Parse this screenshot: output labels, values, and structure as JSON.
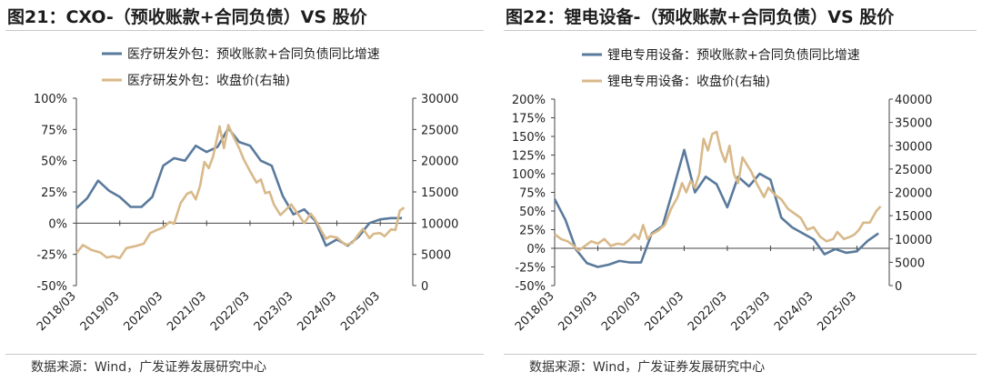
{
  "charts": [
    {
      "title": "图21：CXO-（预收账款+合同负债）VS  股价",
      "source": "数据来源：Wind，广发证券发展研究中心",
      "colors": {
        "growth": "#5a7a9c",
        "price": "#d8b98a"
      }
    },
    {
      "title": "图22：锂电设备-（预收账款+合同负债）VS  股价",
      "source": "数据来源：Wind，广发证券发展研究中心",
      "colors": {
        "growth": "#5a7a9c",
        "price": "#d8b98a"
      }
    }
  ],
  "chart_data": [
    {
      "type": "line",
      "x_tick_labels": [
        "2018/03",
        "2019/03",
        "2020/03",
        "2021/03",
        "2022/03",
        "2023/03",
        "2024/03",
        "2025/03"
      ],
      "y_left_ticks": [
        "100%",
        "75%",
        "50%",
        "25%",
        "0%",
        "-25%",
        "-50%"
      ],
      "y_right_ticks": [
        "30000",
        "25000",
        "20000",
        "15000",
        "10000",
        "5000",
        "0"
      ],
      "ylim_left": [
        -50,
        100
      ],
      "ylim_right": [
        0,
        30000
      ],
      "xlim": [
        2018.0,
        2025.75
      ],
      "series": [
        {
          "name": "医疗研发外包：预收账款+合同负债同比增速",
          "axis": "left",
          "points": [
            [
              2018.0,
              12
            ],
            [
              2018.25,
              20
            ],
            [
              2018.5,
              34
            ],
            [
              2018.75,
              26
            ],
            [
              2019.0,
              21
            ],
            [
              2019.25,
              13
            ],
            [
              2019.5,
              13
            ],
            [
              2019.75,
              21
            ],
            [
              2020.0,
              46
            ],
            [
              2020.25,
              52
            ],
            [
              2020.5,
              50
            ],
            [
              2020.75,
              62
            ],
            [
              2021.0,
              57
            ],
            [
              2021.25,
              61
            ],
            [
              2021.5,
              76
            ],
            [
              2021.75,
              65
            ],
            [
              2022.0,
              62
            ],
            [
              2022.25,
              50
            ],
            [
              2022.5,
              46
            ],
            [
              2022.75,
              22
            ],
            [
              2023.0,
              7
            ],
            [
              2023.25,
              11
            ],
            [
              2023.5,
              2
            ],
            [
              2023.75,
              -18
            ],
            [
              2024.0,
              -13
            ],
            [
              2024.25,
              -18
            ],
            [
              2024.5,
              -11
            ],
            [
              2024.75,
              0
            ],
            [
              2025.0,
              3
            ],
            [
              2025.25,
              4
            ],
            [
              2025.5,
              4
            ]
          ]
        },
        {
          "name": "医疗研发外包：收盘价(右轴)",
          "axis": "right",
          "points": [
            [
              2018.0,
              5200
            ],
            [
              2018.15,
              6500
            ],
            [
              2018.35,
              5700
            ],
            [
              2018.55,
              5300
            ],
            [
              2018.7,
              4500
            ],
            [
              2018.85,
              4700
            ],
            [
              2019.0,
              4400
            ],
            [
              2019.15,
              6000
            ],
            [
              2019.35,
              6300
            ],
            [
              2019.55,
              6700
            ],
            [
              2019.7,
              8400
            ],
            [
              2019.85,
              8900
            ],
            [
              2020.0,
              9300
            ],
            [
              2020.15,
              10200
            ],
            [
              2020.25,
              9900
            ],
            [
              2020.4,
              13200
            ],
            [
              2020.55,
              14700
            ],
            [
              2020.65,
              15000
            ],
            [
              2020.75,
              13800
            ],
            [
              2020.85,
              16000
            ],
            [
              2020.95,
              19800
            ],
            [
              2021.05,
              18800
            ],
            [
              2021.15,
              20700
            ],
            [
              2021.3,
              25500
            ],
            [
              2021.4,
              22000
            ],
            [
              2021.5,
              25700
            ],
            [
              2021.6,
              24100
            ],
            [
              2021.75,
              22000
            ],
            [
              2021.85,
              20300
            ],
            [
              2022.0,
              18300
            ],
            [
              2022.15,
              16500
            ],
            [
              2022.25,
              17000
            ],
            [
              2022.35,
              14800
            ],
            [
              2022.45,
              15000
            ],
            [
              2022.55,
              13000
            ],
            [
              2022.7,
              11300
            ],
            [
              2022.85,
              12300
            ],
            [
              2022.95,
              13000
            ],
            [
              2023.1,
              11500
            ],
            [
              2023.25,
              10000
            ],
            [
              2023.4,
              11500
            ],
            [
              2023.5,
              10600
            ],
            [
              2023.65,
              8700
            ],
            [
              2023.75,
              7500
            ],
            [
              2023.85,
              7900
            ],
            [
              2024.0,
              7700
            ],
            [
              2024.1,
              7100
            ],
            [
              2024.2,
              6500
            ],
            [
              2024.35,
              6800
            ],
            [
              2024.5,
              8200
            ],
            [
              2024.6,
              9100
            ],
            [
              2024.75,
              7600
            ],
            [
              2024.85,
              8300
            ],
            [
              2025.0,
              8400
            ],
            [
              2025.1,
              7900
            ],
            [
              2025.25,
              9000
            ],
            [
              2025.35,
              8900
            ],
            [
              2025.45,
              12000
            ],
            [
              2025.55,
              12500
            ]
          ]
        }
      ]
    },
    {
      "type": "line",
      "x_tick_labels": [
        "2018/03",
        "2019/03",
        "2020/03",
        "2021/03",
        "2022/03",
        "2023/03",
        "2024/03",
        "2025/03"
      ],
      "y_left_ticks": [
        "200%",
        "175%",
        "150%",
        "125%",
        "100%",
        "75%",
        "50%",
        "25%",
        "0%",
        "-25%",
        "-50%"
      ],
      "y_right_ticks": [
        "40000",
        "35000",
        "30000",
        "25000",
        "20000",
        "15000",
        "10000",
        "5000",
        "0"
      ],
      "ylim_left": [
        -50,
        200
      ],
      "ylim_right": [
        0,
        40000
      ],
      "xlim": [
        2018.0,
        2025.75
      ],
      "series": [
        {
          "name": "锂电专用设备：预收账款+合同负债同比增速",
          "axis": "left",
          "points": [
            [
              2018.0,
              66
            ],
            [
              2018.25,
              38
            ],
            [
              2018.5,
              -2
            ],
            [
              2018.75,
              -20
            ],
            [
              2019.0,
              -25
            ],
            [
              2019.25,
              -22
            ],
            [
              2019.5,
              -17
            ],
            [
              2019.75,
              -19
            ],
            [
              2020.0,
              -19
            ],
            [
              2020.25,
              20
            ],
            [
              2020.5,
              30
            ],
            [
              2020.75,
              80
            ],
            [
              2021.0,
              132
            ],
            [
              2021.25,
              75
            ],
            [
              2021.5,
              96
            ],
            [
              2021.75,
              86
            ],
            [
              2022.0,
              55
            ],
            [
              2022.25,
              96
            ],
            [
              2022.5,
              83
            ],
            [
              2022.75,
              100
            ],
            [
              2023.0,
              92
            ],
            [
              2023.25,
              41
            ],
            [
              2023.5,
              28
            ],
            [
              2023.75,
              20
            ],
            [
              2024.0,
              12
            ],
            [
              2024.25,
              -8
            ],
            [
              2024.5,
              -1
            ],
            [
              2024.75,
              -6
            ],
            [
              2025.0,
              -4
            ],
            [
              2025.25,
              10
            ],
            [
              2025.5,
              20
            ]
          ]
        },
        {
          "name": "锂电专用设备：收盘价(右轴)",
          "axis": "right",
          "points": [
            [
              2018.0,
              11000
            ],
            [
              2018.15,
              10000
            ],
            [
              2018.3,
              9500
            ],
            [
              2018.45,
              8500
            ],
            [
              2018.55,
              7500
            ],
            [
              2018.7,
              8500
            ],
            [
              2018.85,
              9500
            ],
            [
              2019.0,
              9000
            ],
            [
              2019.15,
              10000
            ],
            [
              2019.3,
              8500
            ],
            [
              2019.45,
              9000
            ],
            [
              2019.6,
              8800
            ],
            [
              2019.75,
              10000
            ],
            [
              2019.85,
              11000
            ],
            [
              2019.95,
              10000
            ],
            [
              2020.05,
              13000
            ],
            [
              2020.15,
              10000
            ],
            [
              2020.25,
              11000
            ],
            [
              2020.4,
              11800
            ],
            [
              2020.55,
              13000
            ],
            [
              2020.7,
              16500
            ],
            [
              2020.85,
              19000
            ],
            [
              2020.95,
              22000
            ],
            [
              2021.05,
              20000
            ],
            [
              2021.15,
              22500
            ],
            [
              2021.25,
              21000
            ],
            [
              2021.35,
              24000
            ],
            [
              2021.45,
              31500
            ],
            [
              2021.55,
              29000
            ],
            [
              2021.65,
              32500
            ],
            [
              2021.75,
              33000
            ],
            [
              2021.85,
              29000
            ],
            [
              2021.95,
              26500
            ],
            [
              2022.05,
              30000
            ],
            [
              2022.15,
              24000
            ],
            [
              2022.25,
              22000
            ],
            [
              2022.35,
              27500
            ],
            [
              2022.45,
              26000
            ],
            [
              2022.55,
              24500
            ],
            [
              2022.7,
              21500
            ],
            [
              2022.85,
              19000
            ],
            [
              2022.95,
              21000
            ],
            [
              2023.1,
              19500
            ],
            [
              2023.25,
              18500
            ],
            [
              2023.4,
              16500
            ],
            [
              2023.55,
              15500
            ],
            [
              2023.7,
              14500
            ],
            [
              2023.85,
              12000
            ],
            [
              2024.0,
              12500
            ],
            [
              2024.15,
              10500
            ],
            [
              2024.3,
              9500
            ],
            [
              2024.45,
              10000
            ],
            [
              2024.55,
              11500
            ],
            [
              2024.7,
              10000
            ],
            [
              2024.85,
              10500
            ],
            [
              2024.95,
              11000
            ],
            [
              2025.05,
              12000
            ],
            [
              2025.15,
              13500
            ],
            [
              2025.3,
              13500
            ],
            [
              2025.45,
              16000
            ],
            [
              2025.55,
              17000
            ]
          ]
        }
      ]
    }
  ]
}
